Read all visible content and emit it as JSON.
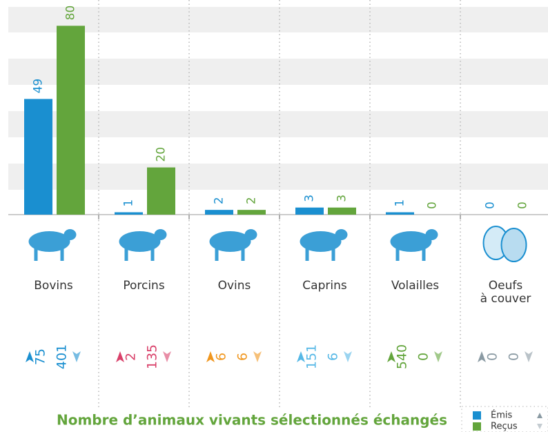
{
  "chart_data": {
    "type": "bar",
    "title": "Nombre d’animaux vivants sélectionnés échangés",
    "categories": [
      "Bovins",
      "Porcins",
      "Ovins",
      "Caprins",
      "Volailles",
      "Oeufs"
    ],
    "category_sublabels": [
      null,
      null,
      null,
      null,
      null,
      "à couver"
    ],
    "series": [
      {
        "name": "Émis",
        "color": "#1a8fd0",
        "values": [
          49,
          1,
          2,
          3,
          1,
          0
        ]
      },
      {
        "name": "Reçus",
        "color": "#63a53c",
        "values": [
          80,
          20,
          2,
          3,
          0,
          0
        ]
      }
    ],
    "ylim": [
      0,
      88
    ],
    "exchanges": {
      "sent": [
        75,
        2,
        6,
        151,
        540,
        0
      ],
      "received": [
        401,
        135,
        6,
        6,
        0,
        0
      ],
      "colors": [
        "#1a8fd0",
        "#d9416a",
        "#f0961e",
        "#56b8e6",
        "#63a53c",
        "#8a9aa3"
      ]
    }
  }
}
